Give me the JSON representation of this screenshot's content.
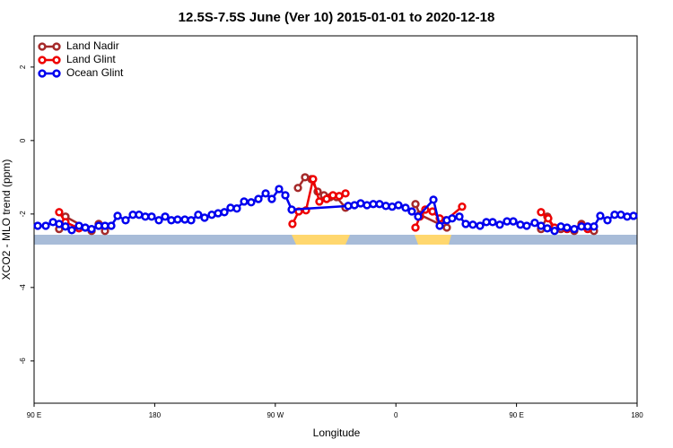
{
  "chart_data": {
    "type": "line",
    "title": "12.5S-7.5S June (Ver 10)   2015-01-01 to 2020-12-18",
    "x_label": "Longitude",
    "y_label": "XCO2 - MLO trend (ppm)",
    "xlim": [
      90,
      540
    ],
    "xticks": [
      {
        "value": 90,
        "label": "90 E"
      },
      180,
      {
        "value": 270,
        "label": "90 W"
      },
      {
        "value": 360,
        "label": "0"
      },
      {
        "value": 450,
        "label": "90 E"
      },
      {
        "value": 540,
        "label": "180"
      }
    ],
    "ylim": [
      -7.15,
      2.85
    ],
    "yticks": [
      -6,
      -4,
      -2,
      0,
      2
    ],
    "legend": "top-left",
    "series": [
      {
        "name": "Land Nadir",
        "color": "#a52a2a",
        "x": [
          108.7,
          113.4,
          132.9,
          138.2,
          142.9,
          null,
          286.9,
          292.2,
          296.9,
          301.6,
          306.3,
          311.0,
          315.7,
          322.4,
          null,
          374.6,
          377.9,
          398.0,
          null,
          468.3,
          473.0,
          477.7,
          483.1,
          493.1,
          498.5,
          507.8
        ],
        "values": [
          -2.41,
          -2.07,
          -2.46,
          -2.27,
          -2.46,
          null,
          -1.29,
          -1.0,
          -1.05,
          -1.39,
          -1.49,
          -1.54,
          -1.54,
          -1.83,
          null,
          -1.73,
          -2.02,
          -2.37,
          null,
          -2.41,
          -2.07,
          -2.39,
          -2.41,
          -2.46,
          -2.27,
          -2.46
        ]
      },
      {
        "name": "Land Glint",
        "color": "#ee0000",
        "x": [
          108.7,
          113.4,
          123.5,
          null,
          282.8,
          287.5,
          292.9,
          298.2,
          302.9,
          308.3,
          313.0,
          317.7,
          322.4,
          null,
          374.6,
          377.9,
          381.9,
          387.3,
          392.7,
          397.3,
          409.4,
          null,
          468.3,
          473.7,
          478.4,
          487.7,
          498.5,
          503.1
        ],
        "values": [
          -1.95,
          -2.22,
          -2.39,
          null,
          -2.27,
          -1.93,
          -1.9,
          -1.05,
          -1.66,
          -1.59,
          -1.49,
          -1.51,
          -1.44,
          null,
          -2.37,
          -2.07,
          -1.88,
          -1.93,
          -2.12,
          -2.17,
          -1.8,
          null,
          -1.95,
          -2.12,
          -2.37,
          -2.41,
          -2.32,
          -2.41
        ]
      },
      {
        "name": "Ocean Glint",
        "color": "#0000ee",
        "x": [
          92.7,
          98.7,
          104.1,
          108.7,
          113.4,
          118.1,
          123.5,
          128.2,
          132.9,
          138.2,
          142.9,
          147.6,
          152.3,
          158.3,
          163.7,
          168.3,
          173.0,
          177.7,
          183.1,
          187.8,
          192.4,
          197.1,
          202.5,
          207.2,
          212.5,
          217.2,
          222.6,
          227.3,
          232.0,
          236.6,
          241.3,
          246.7,
          252.0,
          257.4,
          262.8,
          267.4,
          272.8,
          277.5,
          282.2,
          324.4,
          329.1,
          333.7,
          338.4,
          343.1,
          347.8,
          352.5,
          357.2,
          361.9,
          367.2,
          371.9,
          376.6,
          388.0,
          392.7,
          398.0,
          402.0,
          407.4,
          412.1,
          417.4,
          422.8,
          427.5,
          432.2,
          437.5,
          442.9,
          447.6,
          452.9,
          457.6,
          463.6,
          468.3,
          473.0,
          478.4,
          483.1,
          487.7,
          493.1,
          498.5,
          503.1,
          507.8,
          512.5,
          517.9,
          523.2,
          527.9,
          532.6,
          537.3
        ],
        "values": [
          -2.32,
          -2.32,
          -2.22,
          -2.27,
          -2.34,
          -2.44,
          -2.32,
          -2.37,
          -2.41,
          -2.32,
          -2.32,
          -2.32,
          -2.05,
          -2.17,
          -2.02,
          -2.02,
          -2.07,
          -2.07,
          -2.17,
          -2.07,
          -2.17,
          -2.15,
          -2.15,
          -2.17,
          -2.02,
          -2.1,
          -2.02,
          -1.98,
          -1.95,
          -1.83,
          -1.85,
          -1.66,
          -1.68,
          -1.59,
          -1.44,
          -1.59,
          -1.32,
          -1.49,
          -1.88,
          -1.78,
          -1.76,
          -1.71,
          -1.76,
          -1.73,
          -1.73,
          -1.78,
          -1.8,
          -1.76,
          -1.83,
          -1.93,
          -2.07,
          -1.61,
          -2.32,
          -2.17,
          -2.12,
          -2.07,
          -2.27,
          -2.29,
          -2.32,
          -2.22,
          -2.22,
          -2.29,
          -2.2,
          -2.2,
          -2.29,
          -2.32,
          -2.24,
          -2.32,
          -2.39,
          -2.46,
          -2.34,
          -2.37,
          -2.41,
          -2.34,
          -2.34,
          -2.34,
          -2.05,
          -2.17,
          -2.02,
          -2.02,
          -2.07,
          -2.05
        ]
      }
    ]
  }
}
